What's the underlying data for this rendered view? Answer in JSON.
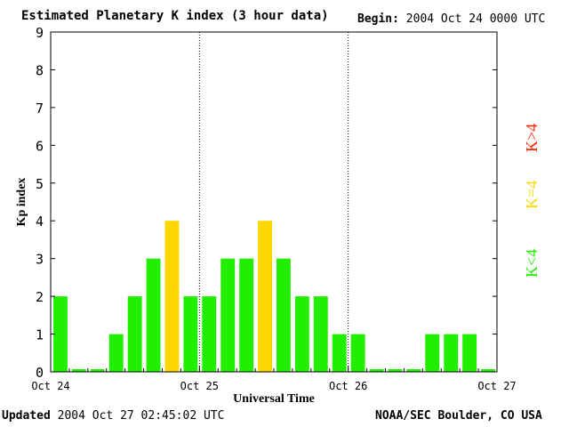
{
  "header": {
    "title": "Estimated Planetary K index (3 hour data)",
    "begin_label": "Begin:",
    "begin_value": "2004 Oct 24 0000 UTC"
  },
  "footer": {
    "updated_label": "Updated",
    "updated_value": "2004 Oct 27 02:45:02 UTC",
    "credit": "NOAA/SEC Boulder, CO USA"
  },
  "legend": {
    "high": {
      "label": "K>4",
      "color": "#ff2200"
    },
    "equal": {
      "label": "K=4",
      "color": "#ffd700"
    },
    "low": {
      "label": "K<4",
      "color": "#22ee00"
    }
  },
  "chart_data": {
    "type": "bar",
    "title": "Estimated Planetary K index (3 hour data)",
    "xlabel": "Universal Time",
    "ylabel": "Kp index",
    "ylim": [
      0,
      9
    ],
    "yticks": [
      "0",
      "1",
      "2",
      "3",
      "4",
      "5",
      "6",
      "7",
      "8",
      "9"
    ],
    "xticks": [
      "Oct 24",
      "Oct 25",
      "Oct 26",
      "Oct 27"
    ],
    "bin_hours": 3,
    "values": [
      2,
      0,
      0,
      1,
      2,
      3,
      4,
      2,
      2,
      3,
      3,
      4,
      3,
      2,
      2,
      1,
      1,
      0,
      0,
      0,
      1,
      1,
      1,
      0
    ],
    "colors": {
      "below4": "#22ee00",
      "equal4": "#ffd700",
      "above4": "#ff2200"
    },
    "day_separators": "dotted"
  }
}
